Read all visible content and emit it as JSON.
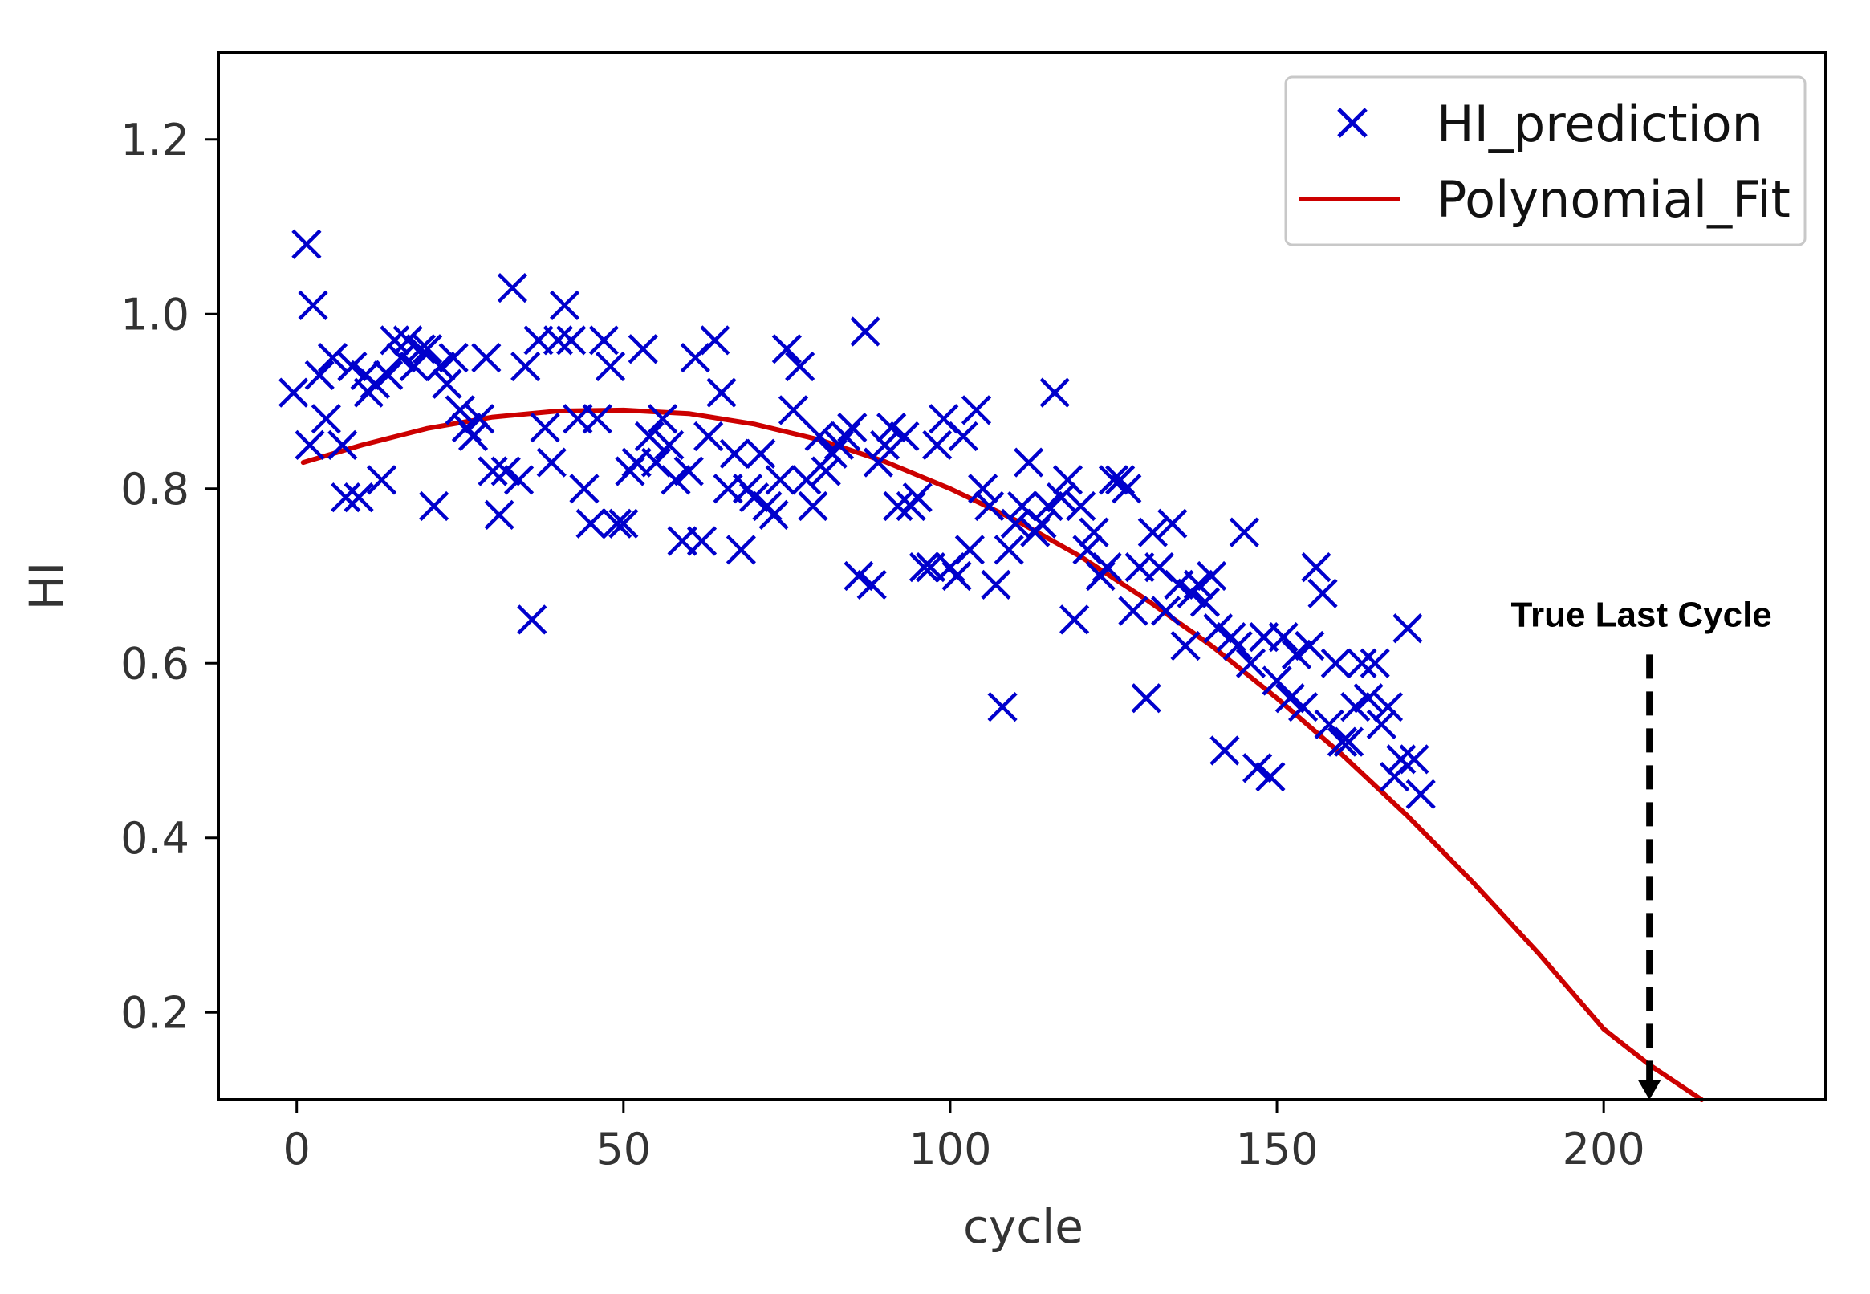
{
  "chart_data": {
    "type": "scatter",
    "title": "",
    "xlabel": "cycle",
    "ylabel": "HI",
    "xlim": [
      -12,
      234
    ],
    "ylim": [
      0.1,
      1.3
    ],
    "xticks": [
      0,
      50,
      100,
      150,
      200
    ],
    "yticks": [
      0.2,
      0.4,
      0.6,
      0.8,
      1.0,
      1.2
    ],
    "xtick_labels": [
      "0",
      "50",
      "100",
      "150",
      "200"
    ],
    "ytick_labels": [
      "0.2",
      "0.4",
      "0.6",
      "0.8",
      "1.0",
      "1.2"
    ],
    "grid": false,
    "legend_position": "top-right",
    "colors": {
      "scatter": "#0000cc",
      "fit": "#cc0000",
      "annotation": "#000000",
      "frame": "#000000"
    },
    "series": [
      {
        "name": "HI_prediction",
        "kind": "scatter",
        "marker": "x",
        "points": [
          [
            -0.5,
            0.91
          ],
          [
            1.5,
            1.08
          ],
          [
            2,
            0.85
          ],
          [
            2.5,
            1.01
          ],
          [
            3.5,
            0.93
          ],
          [
            4.5,
            0.88
          ],
          [
            5.5,
            0.95
          ],
          [
            7,
            0.85
          ],
          [
            7.5,
            0.79
          ],
          [
            8.5,
            0.94
          ],
          [
            9.5,
            0.79
          ],
          [
            10.5,
            0.93
          ],
          [
            11,
            0.91
          ],
          [
            12,
            0.92
          ],
          [
            13,
            0.81
          ],
          [
            14,
            0.93
          ],
          [
            15,
            0.97
          ],
          [
            16,
            0.95
          ],
          [
            17,
            0.97
          ],
          [
            18,
            0.94
          ],
          [
            19,
            0.96
          ],
          [
            20,
            0.96
          ],
          [
            21,
            0.78
          ],
          [
            22,
            0.94
          ],
          [
            23,
            0.92
          ],
          [
            24,
            0.95
          ],
          [
            25,
            0.89
          ],
          [
            26,
            0.87
          ],
          [
            27,
            0.86
          ],
          [
            28,
            0.88
          ],
          [
            29,
            0.95
          ],
          [
            30,
            0.82
          ],
          [
            31,
            0.77
          ],
          [
            32,
            0.82
          ],
          [
            33,
            1.03
          ],
          [
            34,
            0.81
          ],
          [
            35,
            0.94
          ],
          [
            36,
            0.65
          ],
          [
            37,
            0.97
          ],
          [
            38,
            0.87
          ],
          [
            39,
            0.83
          ],
          [
            40,
            0.97
          ],
          [
            41,
            1.01
          ],
          [
            42,
            0.97
          ],
          [
            43,
            0.88
          ],
          [
            44,
            0.8
          ],
          [
            45,
            0.76
          ],
          [
            46,
            0.88
          ],
          [
            47,
            0.97
          ],
          [
            48,
            0.94
          ],
          [
            49,
            0.76
          ],
          [
            50,
            0.76
          ],
          [
            51,
            0.82
          ],
          [
            52,
            0.83
          ],
          [
            53,
            0.96
          ],
          [
            54,
            0.86
          ],
          [
            55,
            0.83
          ],
          [
            56,
            0.88
          ],
          [
            57,
            0.85
          ],
          [
            58,
            0.81
          ],
          [
            59,
            0.74
          ],
          [
            60,
            0.82
          ],
          [
            61,
            0.95
          ],
          [
            62,
            0.74
          ],
          [
            63,
            0.86
          ],
          [
            64,
            0.97
          ],
          [
            65,
            0.91
          ],
          [
            66,
            0.8
          ],
          [
            67,
            0.84
          ],
          [
            68,
            0.73
          ],
          [
            69,
            0.8
          ],
          [
            70,
            0.79
          ],
          [
            71,
            0.84
          ],
          [
            72,
            0.78
          ],
          [
            73,
            0.77
          ],
          [
            74,
            0.81
          ],
          [
            75,
            0.96
          ],
          [
            76,
            0.89
          ],
          [
            77,
            0.94
          ],
          [
            78,
            0.81
          ],
          [
            79,
            0.78
          ],
          [
            80,
            0.86
          ],
          [
            81,
            0.82
          ],
          [
            82,
            0.84
          ],
          [
            83,
            0.85
          ],
          [
            84,
            0.86
          ],
          [
            85,
            0.87
          ],
          [
            86,
            0.7
          ],
          [
            87,
            0.98
          ],
          [
            88,
            0.69
          ],
          [
            89,
            0.83
          ],
          [
            90,
            0.85
          ],
          [
            91,
            0.87
          ],
          [
            92,
            0.78
          ],
          [
            93,
            0.86
          ],
          [
            94,
            0.78
          ],
          [
            95,
            0.79
          ],
          [
            96,
            0.71
          ],
          [
            97,
            0.71
          ],
          [
            98,
            0.85
          ],
          [
            99,
            0.88
          ],
          [
            100,
            0.71
          ],
          [
            101,
            0.7
          ],
          [
            102,
            0.86
          ],
          [
            103,
            0.73
          ],
          [
            104,
            0.89
          ],
          [
            105,
            0.8
          ],
          [
            106,
            0.78
          ],
          [
            107,
            0.69
          ],
          [
            108,
            0.55
          ],
          [
            109,
            0.73
          ],
          [
            110,
            0.76
          ],
          [
            111,
            0.78
          ],
          [
            112,
            0.83
          ],
          [
            113,
            0.75
          ],
          [
            114,
            0.76
          ],
          [
            115,
            0.78
          ],
          [
            116,
            0.91
          ],
          [
            117,
            0.79
          ],
          [
            118,
            0.81
          ],
          [
            119,
            0.65
          ],
          [
            120,
            0.78
          ],
          [
            121,
            0.73
          ],
          [
            122,
            0.75
          ],
          [
            123,
            0.7
          ],
          [
            124,
            0.71
          ],
          [
            125,
            0.81
          ],
          [
            126,
            0.81
          ],
          [
            127,
            0.8
          ],
          [
            128,
            0.66
          ],
          [
            129,
            0.71
          ],
          [
            130,
            0.56
          ],
          [
            131,
            0.75
          ],
          [
            132,
            0.71
          ],
          [
            133,
            0.66
          ],
          [
            134,
            0.76
          ],
          [
            135,
            0.69
          ],
          [
            136,
            0.62
          ],
          [
            137,
            0.68
          ],
          [
            138,
            0.69
          ],
          [
            139,
            0.67
          ],
          [
            140,
            0.7
          ],
          [
            141,
            0.64
          ],
          [
            142,
            0.5
          ],
          [
            143,
            0.63
          ],
          [
            144,
            0.62
          ],
          [
            145,
            0.75
          ],
          [
            146,
            0.6
          ],
          [
            147,
            0.48
          ],
          [
            148,
            0.63
          ],
          [
            149,
            0.47
          ],
          [
            150,
            0.58
          ],
          [
            151,
            0.63
          ],
          [
            152,
            0.56
          ],
          [
            153,
            0.61
          ],
          [
            154,
            0.55
          ],
          [
            155,
            0.62
          ],
          [
            156,
            0.71
          ],
          [
            157,
            0.68
          ],
          [
            158,
            0.53
          ],
          [
            159,
            0.6
          ],
          [
            160,
            0.51
          ],
          [
            161,
            0.51
          ],
          [
            162,
            0.55
          ],
          [
            163,
            0.6
          ],
          [
            164,
            0.56
          ],
          [
            165,
            0.6
          ],
          [
            166,
            0.53
          ],
          [
            167,
            0.55
          ],
          [
            168,
            0.47
          ],
          [
            169,
            0.49
          ],
          [
            170,
            0.64
          ],
          [
            171,
            0.49
          ],
          [
            172,
            0.45
          ]
        ]
      },
      {
        "name": "Polynomial_Fit",
        "kind": "line",
        "x": [
          1,
          10,
          20,
          30,
          40,
          50,
          60,
          70,
          80,
          90,
          100,
          110,
          120,
          130,
          140,
          150,
          160,
          170,
          180,
          190,
          200,
          207,
          215
        ],
        "y": [
          0.83,
          0.85,
          0.869,
          0.882,
          0.889,
          0.89,
          0.886,
          0.874,
          0.856,
          0.831,
          0.8,
          0.764,
          0.722,
          0.673,
          0.62,
          0.56,
          0.495,
          0.425,
          0.349,
          0.268,
          0.181,
          0.14,
          0.1
        ]
      }
    ],
    "annotations": [
      {
        "text": "True Last Cycle",
        "x": 207,
        "arrow_from_y": 0.61,
        "arrow_to_y": 0.1,
        "style": "dashed-arrow"
      }
    ]
  }
}
